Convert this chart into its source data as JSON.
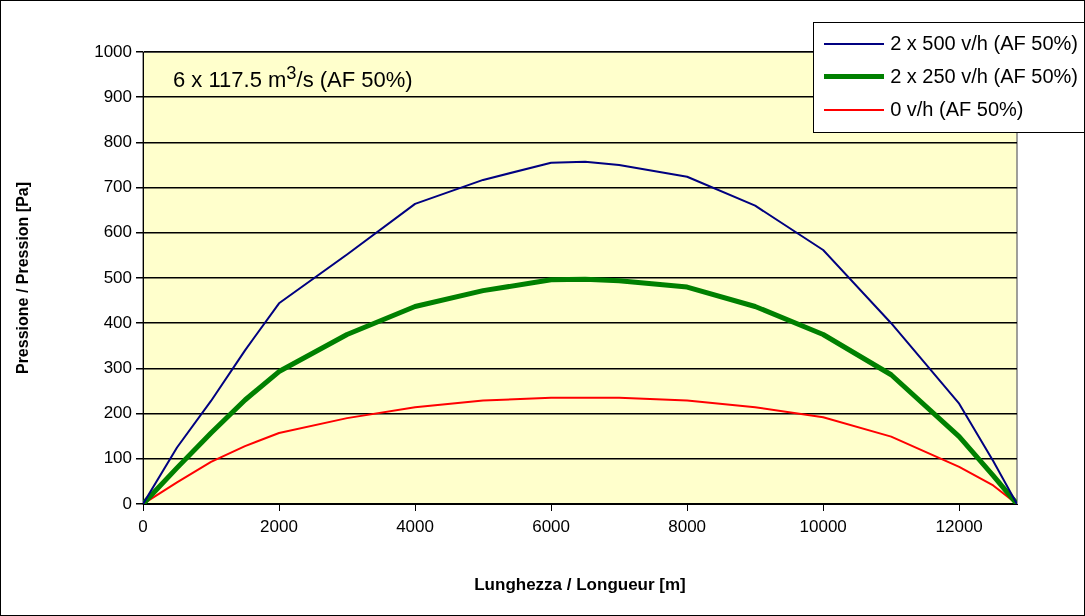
{
  "chart_data": {
    "type": "line",
    "xlabel": "Lunghezza / Longueur [m]",
    "ylabel": "Pressione / Pression [Pa]",
    "annotations": [
      "6 x 117.5 m$^{3}$/s (AF 50%)"
    ],
    "x": [
      0,
      500,
      1000,
      1500,
      2000,
      3000,
      4000,
      5000,
      6000,
      6500,
      7000,
      8000,
      9000,
      10000,
      11000,
      12000,
      12500,
      12850
    ],
    "series": [
      {
        "name": "2 x 500 v/h (AF 50%)",
        "color": "#000080",
        "values": [
          0,
          125,
          228,
          340,
          444,
          552,
          664,
          717,
          755,
          757,
          750,
          724,
          660,
          562,
          400,
          222,
          95,
          0
        ]
      },
      {
        "name": "2 x 250 v/h (AF 50%)",
        "color": "#008000",
        "values": [
          0,
          80,
          157,
          230,
          293,
          375,
          437,
          472,
          496,
          497,
          494,
          480,
          437,
          375,
          286,
          149,
          63,
          0
        ]
      },
      {
        "name": "0 v/h (AF 50%)",
        "color": "#ff0000",
        "values": [
          0,
          48,
          93,
          128,
          157,
          190,
          214,
          229,
          235,
          235,
          235,
          229,
          214,
          192,
          149,
          82,
          41,
          0
        ]
      }
    ],
    "xlim": [
      0,
      12850
    ],
    "xticks": [
      0,
      2000,
      4000,
      6000,
      8000,
      10000,
      12000
    ],
    "ylim": [
      0,
      1000
    ],
    "yticks": [
      0,
      100,
      200,
      300,
      400,
      500,
      600,
      700,
      800,
      900,
      1000
    ],
    "grid": "y",
    "legend": "top right",
    "marker": "none",
    "line_style": "solid"
  }
}
